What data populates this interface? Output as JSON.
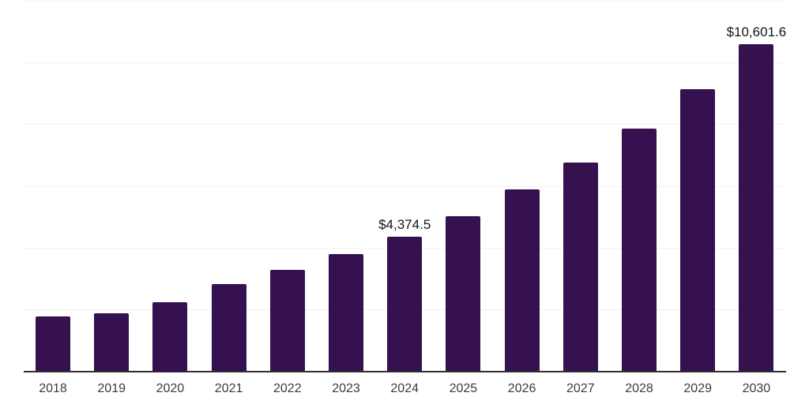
{
  "chart_data": {
    "type": "bar",
    "title": "",
    "xlabel": "",
    "ylabel": "",
    "legend": "none",
    "grid": "horizontal",
    "ylim": [
      0,
      12000
    ],
    "gridline_step": 2000,
    "y_axis_tick_labels_visible": false,
    "categories": [
      "2018",
      "2019",
      "2020",
      "2021",
      "2022",
      "2023",
      "2024",
      "2025",
      "2026",
      "2027",
      "2028",
      "2029",
      "2030"
    ],
    "values": [
      1770,
      1890,
      2250,
      2840,
      3280,
      3790,
      4374.5,
      5040,
      5890,
      6760,
      7860,
      9140,
      10601.6
    ],
    "points": [
      {
        "year": "2018",
        "value": 1770,
        "label": ""
      },
      {
        "year": "2019",
        "value": 1890,
        "label": ""
      },
      {
        "year": "2020",
        "value": 2250,
        "label": ""
      },
      {
        "year": "2021",
        "value": 2840,
        "label": ""
      },
      {
        "year": "2022",
        "value": 3280,
        "label": ""
      },
      {
        "year": "2023",
        "value": 3790,
        "label": ""
      },
      {
        "year": "2024",
        "value": 4374.5,
        "label": "$4,374.5"
      },
      {
        "year": "2025",
        "value": 5040,
        "label": ""
      },
      {
        "year": "2026",
        "value": 5890,
        "label": ""
      },
      {
        "year": "2027",
        "value": 6760,
        "label": ""
      },
      {
        "year": "2028",
        "value": 7860,
        "label": ""
      },
      {
        "year": "2029",
        "value": 9140,
        "label": ""
      },
      {
        "year": "2030",
        "value": 10601.6,
        "label": "$10,601.6"
      }
    ],
    "colors": {
      "bar": "#351150",
      "axis_line": "#2f2f2f",
      "gridline": "#f0f0f0",
      "data_label_text": "#141414",
      "tick_label_text": "#3a3a3a",
      "background": "#ffffff"
    }
  }
}
